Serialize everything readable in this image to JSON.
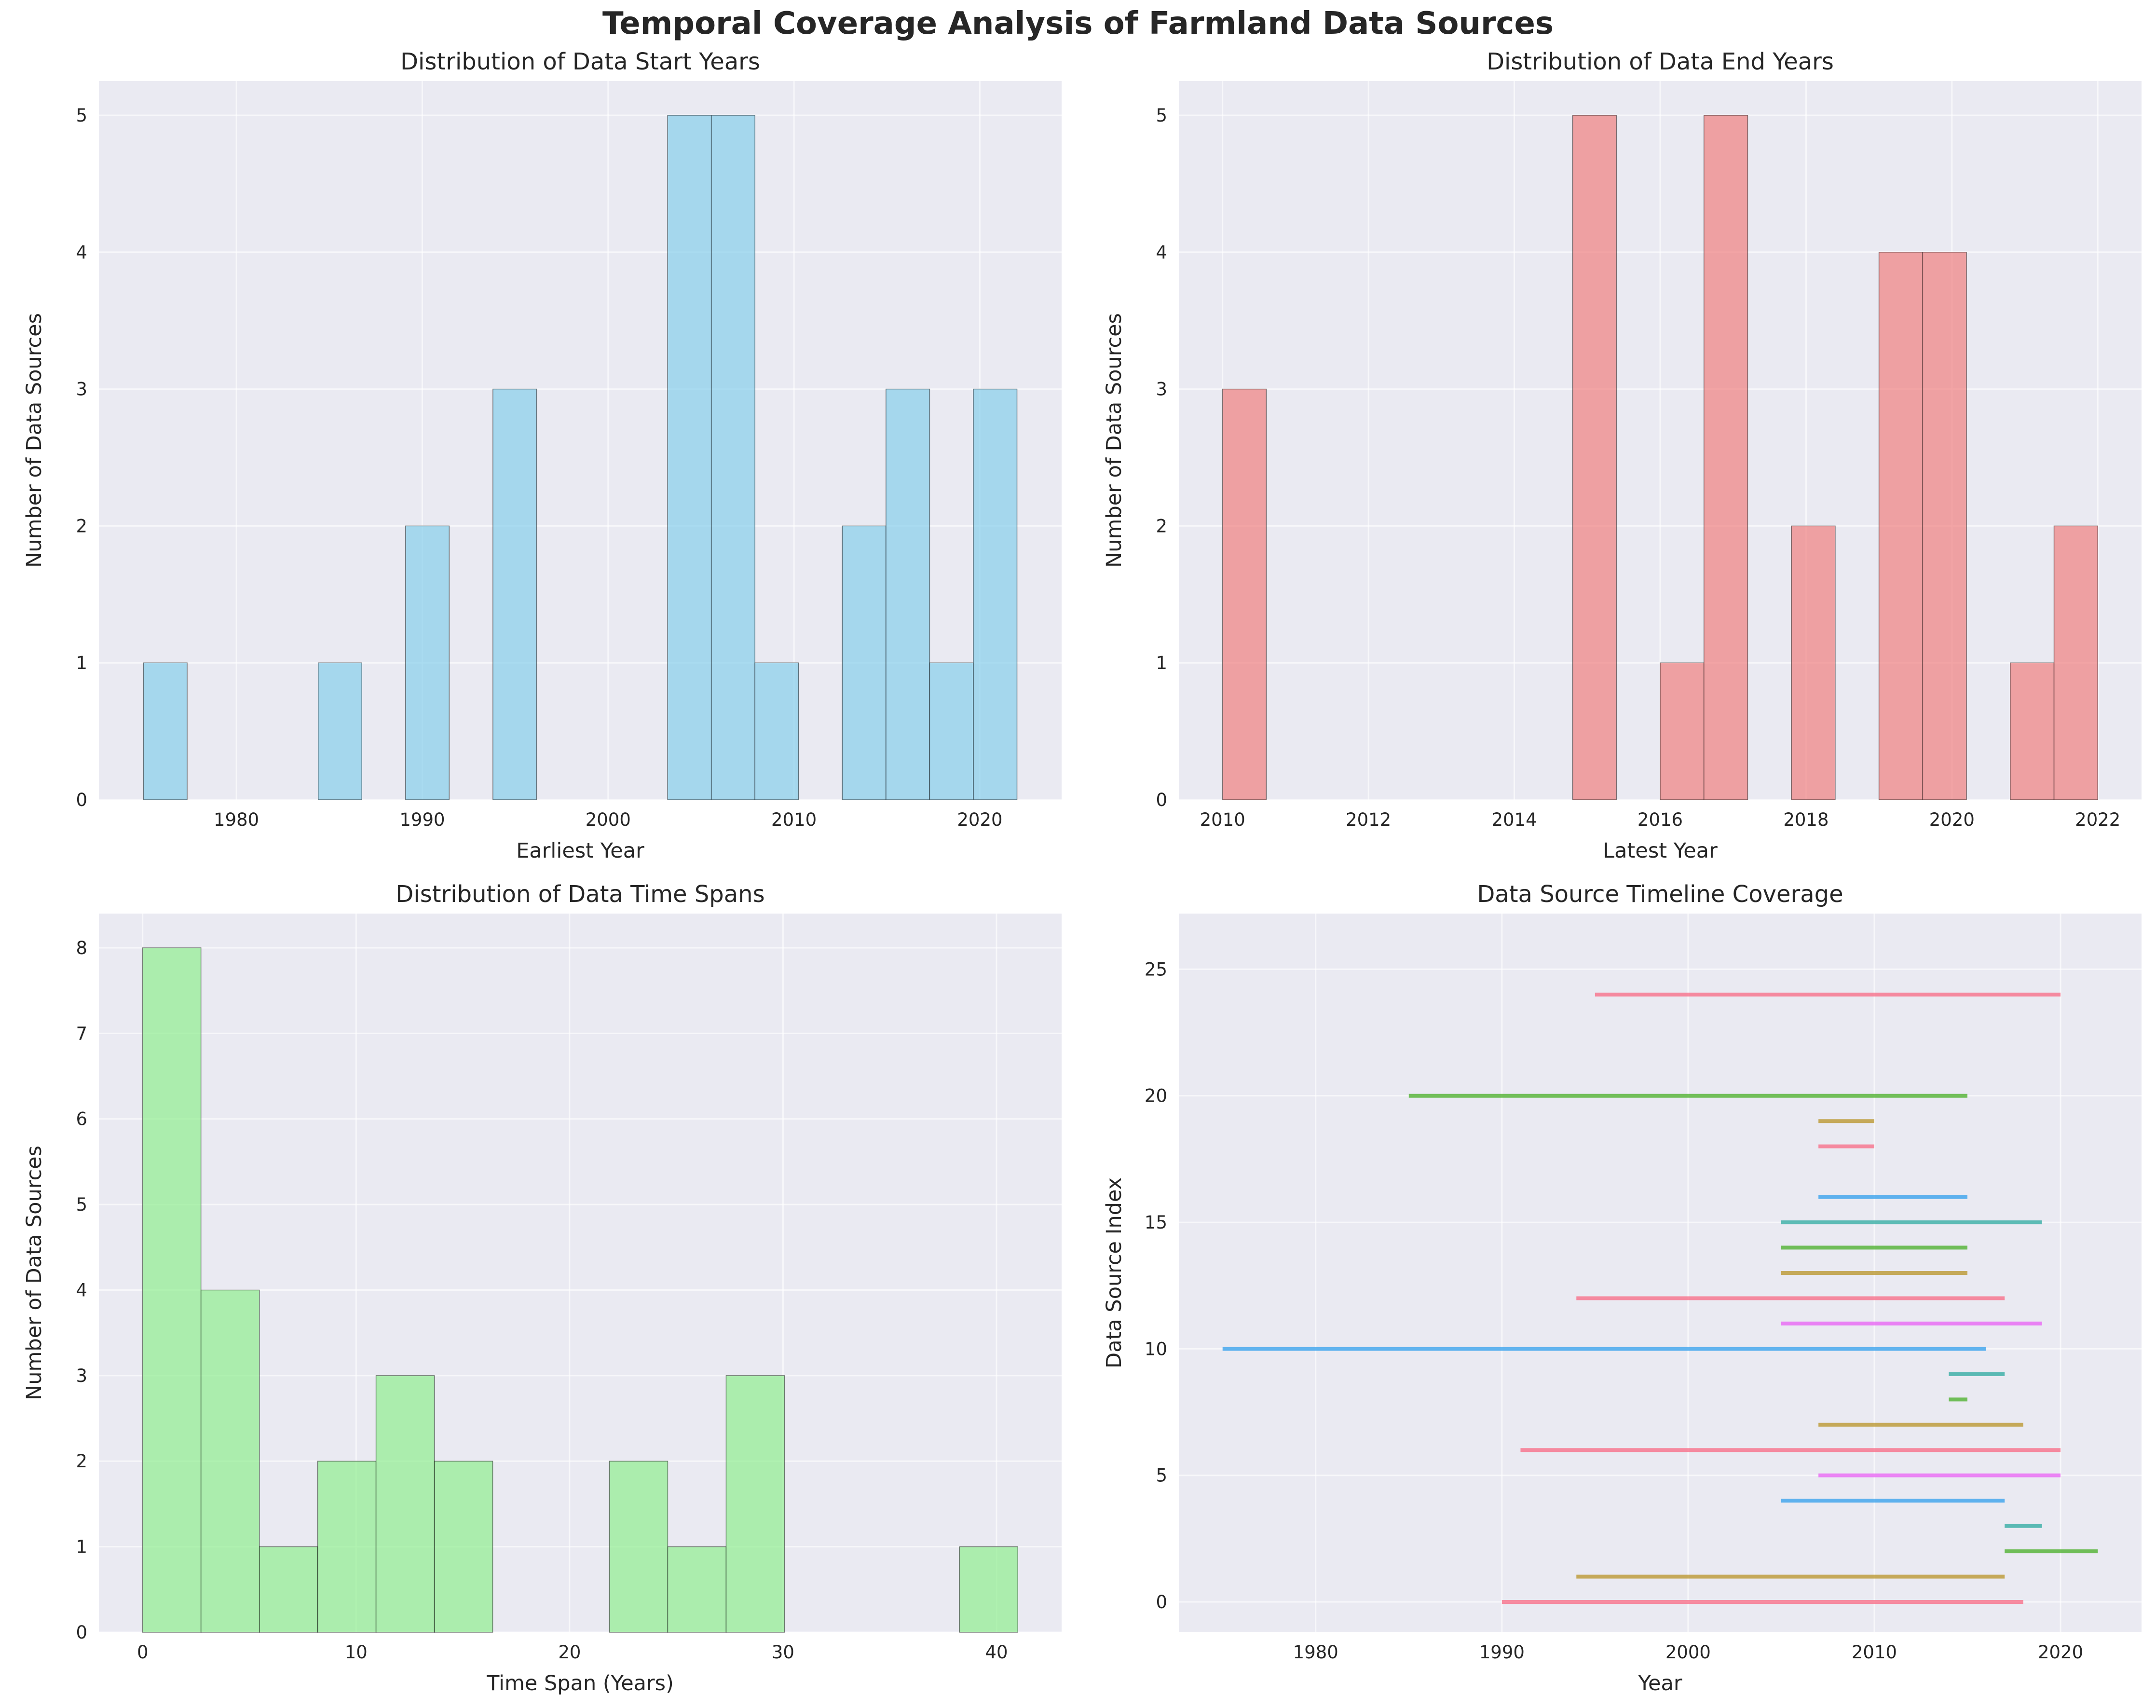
{
  "figure": {
    "title": "Temporal Coverage Analysis of Farmland Data Sources"
  },
  "chart_data": [
    {
      "type": "bar",
      "title": "Distribution of Data Start Years",
      "xlabel": "Earliest Year",
      "ylabel": "Number of Data Sources",
      "xlim": [
        1972.6,
        2024.4
      ],
      "ylim": [
        0,
        5.25
      ],
      "xticks": [
        1980,
        1990,
        2000,
        2010,
        2020
      ],
      "yticks": [
        0,
        1,
        2,
        3,
        4,
        5
      ],
      "bin_edges": [
        1975,
        1977.35,
        1979.7,
        1982.05,
        1984.4,
        1986.75,
        1989.1,
        1991.45,
        1993.8,
        1996.15,
        1998.5,
        2000.85,
        2003.2,
        2005.55,
        2007.9,
        2010.25,
        2012.6,
        2014.95,
        2017.3,
        2019.65,
        2022
      ],
      "counts": [
        1,
        0,
        0,
        0,
        1,
        0,
        2,
        0,
        3,
        0,
        0,
        0,
        5,
        5,
        1,
        0,
        2,
        3,
        1,
        3
      ],
      "color": "#87ceeb",
      "grid": true
    },
    {
      "type": "bar",
      "title": "Distribution of Data End Years",
      "xlabel": "Latest Year",
      "ylabel": "Number of Data Sources",
      "xlim": [
        2009.4,
        2022.6
      ],
      "ylim": [
        0,
        5.25
      ],
      "xticks": [
        2010,
        2012,
        2014,
        2016,
        2018,
        2020,
        2022
      ],
      "yticks": [
        0,
        1,
        2,
        3,
        4,
        5
      ],
      "bin_edges": [
        2010,
        2010.6,
        2011.2,
        2011.8,
        2012.4,
        2013,
        2013.6,
        2014.2,
        2014.8,
        2015.4,
        2016,
        2016.6,
        2017.2,
        2017.8,
        2018.4,
        2019,
        2019.6,
        2020.2,
        2020.8,
        2021.4,
        2022
      ],
      "counts": [
        3,
        0,
        0,
        0,
        0,
        0,
        0,
        0,
        5,
        0,
        1,
        5,
        0,
        2,
        0,
        4,
        4,
        0,
        1,
        2
      ],
      "color": "#f08080",
      "grid": true
    },
    {
      "type": "bar",
      "title": "Distribution of Data Time Spans",
      "xlabel": "Time Span (Years)",
      "ylabel": "Number of Data Sources",
      "xlim": [
        -2.05,
        43.05
      ],
      "ylim": [
        0,
        8.4
      ],
      "xticks": [
        0,
        10,
        20,
        30,
        40
      ],
      "yticks": [
        0,
        1,
        2,
        3,
        4,
        5,
        6,
        7,
        8
      ],
      "bin_edges": [
        0,
        2.733,
        5.467,
        8.2,
        10.933,
        13.667,
        16.4,
        19.133,
        21.867,
        24.6,
        27.333,
        30.067,
        32.8,
        35.533,
        38.267,
        41
      ],
      "counts": [
        8,
        4,
        1,
        2,
        3,
        2,
        0,
        0,
        2,
        1,
        3,
        0,
        0,
        0,
        1
      ],
      "color": "#90ee90",
      "grid": true
    },
    {
      "type": "line",
      "title": "Data Source Timeline Coverage",
      "xlabel": "Year",
      "ylabel": "Data Source Index",
      "xlim": [
        1972.65,
        2024.35
      ],
      "ylim": [
        -1.2,
        27.2
      ],
      "xticks": [
        1980,
        1990,
        2000,
        2010,
        2020
      ],
      "yticks": [
        0,
        5,
        10,
        15,
        20,
        25
      ],
      "grid": true,
      "segments": [
        {
          "index": 0,
          "start": 1990,
          "end": 2018,
          "color": "#f77189"
        },
        {
          "index": 1,
          "start": 1994,
          "end": 2017,
          "color": "#bb9832"
        },
        {
          "index": 2,
          "start": 2017,
          "end": 2022,
          "color": "#50b131"
        },
        {
          "index": 3,
          "start": 2017,
          "end": 2019,
          "color": "#36ada4"
        },
        {
          "index": 4,
          "start": 2005,
          "end": 2017,
          "color": "#3ba3ec"
        },
        {
          "index": 5,
          "start": 2007,
          "end": 2020,
          "color": "#e866f4"
        },
        {
          "index": 6,
          "start": 1991,
          "end": 2020,
          "color": "#f77189"
        },
        {
          "index": 7,
          "start": 2007,
          "end": 2018,
          "color": "#bb9832"
        },
        {
          "index": 8,
          "start": 2014,
          "end": 2015,
          "color": "#50b131"
        },
        {
          "index": 9,
          "start": 2014,
          "end": 2017,
          "color": "#36ada4"
        },
        {
          "index": 10,
          "start": 1975,
          "end": 2016,
          "color": "#3ba3ec"
        },
        {
          "index": 11,
          "start": 2005,
          "end": 2019,
          "color": "#e866f4"
        },
        {
          "index": 12,
          "start": 1994,
          "end": 2017,
          "color": "#f77189"
        },
        {
          "index": 13,
          "start": 2005,
          "end": 2015,
          "color": "#bb9832"
        },
        {
          "index": 14,
          "start": 2005,
          "end": 2015,
          "color": "#50b131"
        },
        {
          "index": 15,
          "start": 2005,
          "end": 2019,
          "color": "#36ada4"
        },
        {
          "index": 16,
          "start": 2007,
          "end": 2015,
          "color": "#3ba3ec"
        },
        {
          "index": 18,
          "start": 2007,
          "end": 2010,
          "color": "#f77189"
        },
        {
          "index": 19,
          "start": 2007,
          "end": 2010,
          "color": "#bb9832"
        },
        {
          "index": 20,
          "start": 1985,
          "end": 2015,
          "color": "#50b131"
        },
        {
          "index": 24,
          "start": 1995,
          "end": 2020,
          "color": "#f77189"
        }
      ]
    }
  ]
}
